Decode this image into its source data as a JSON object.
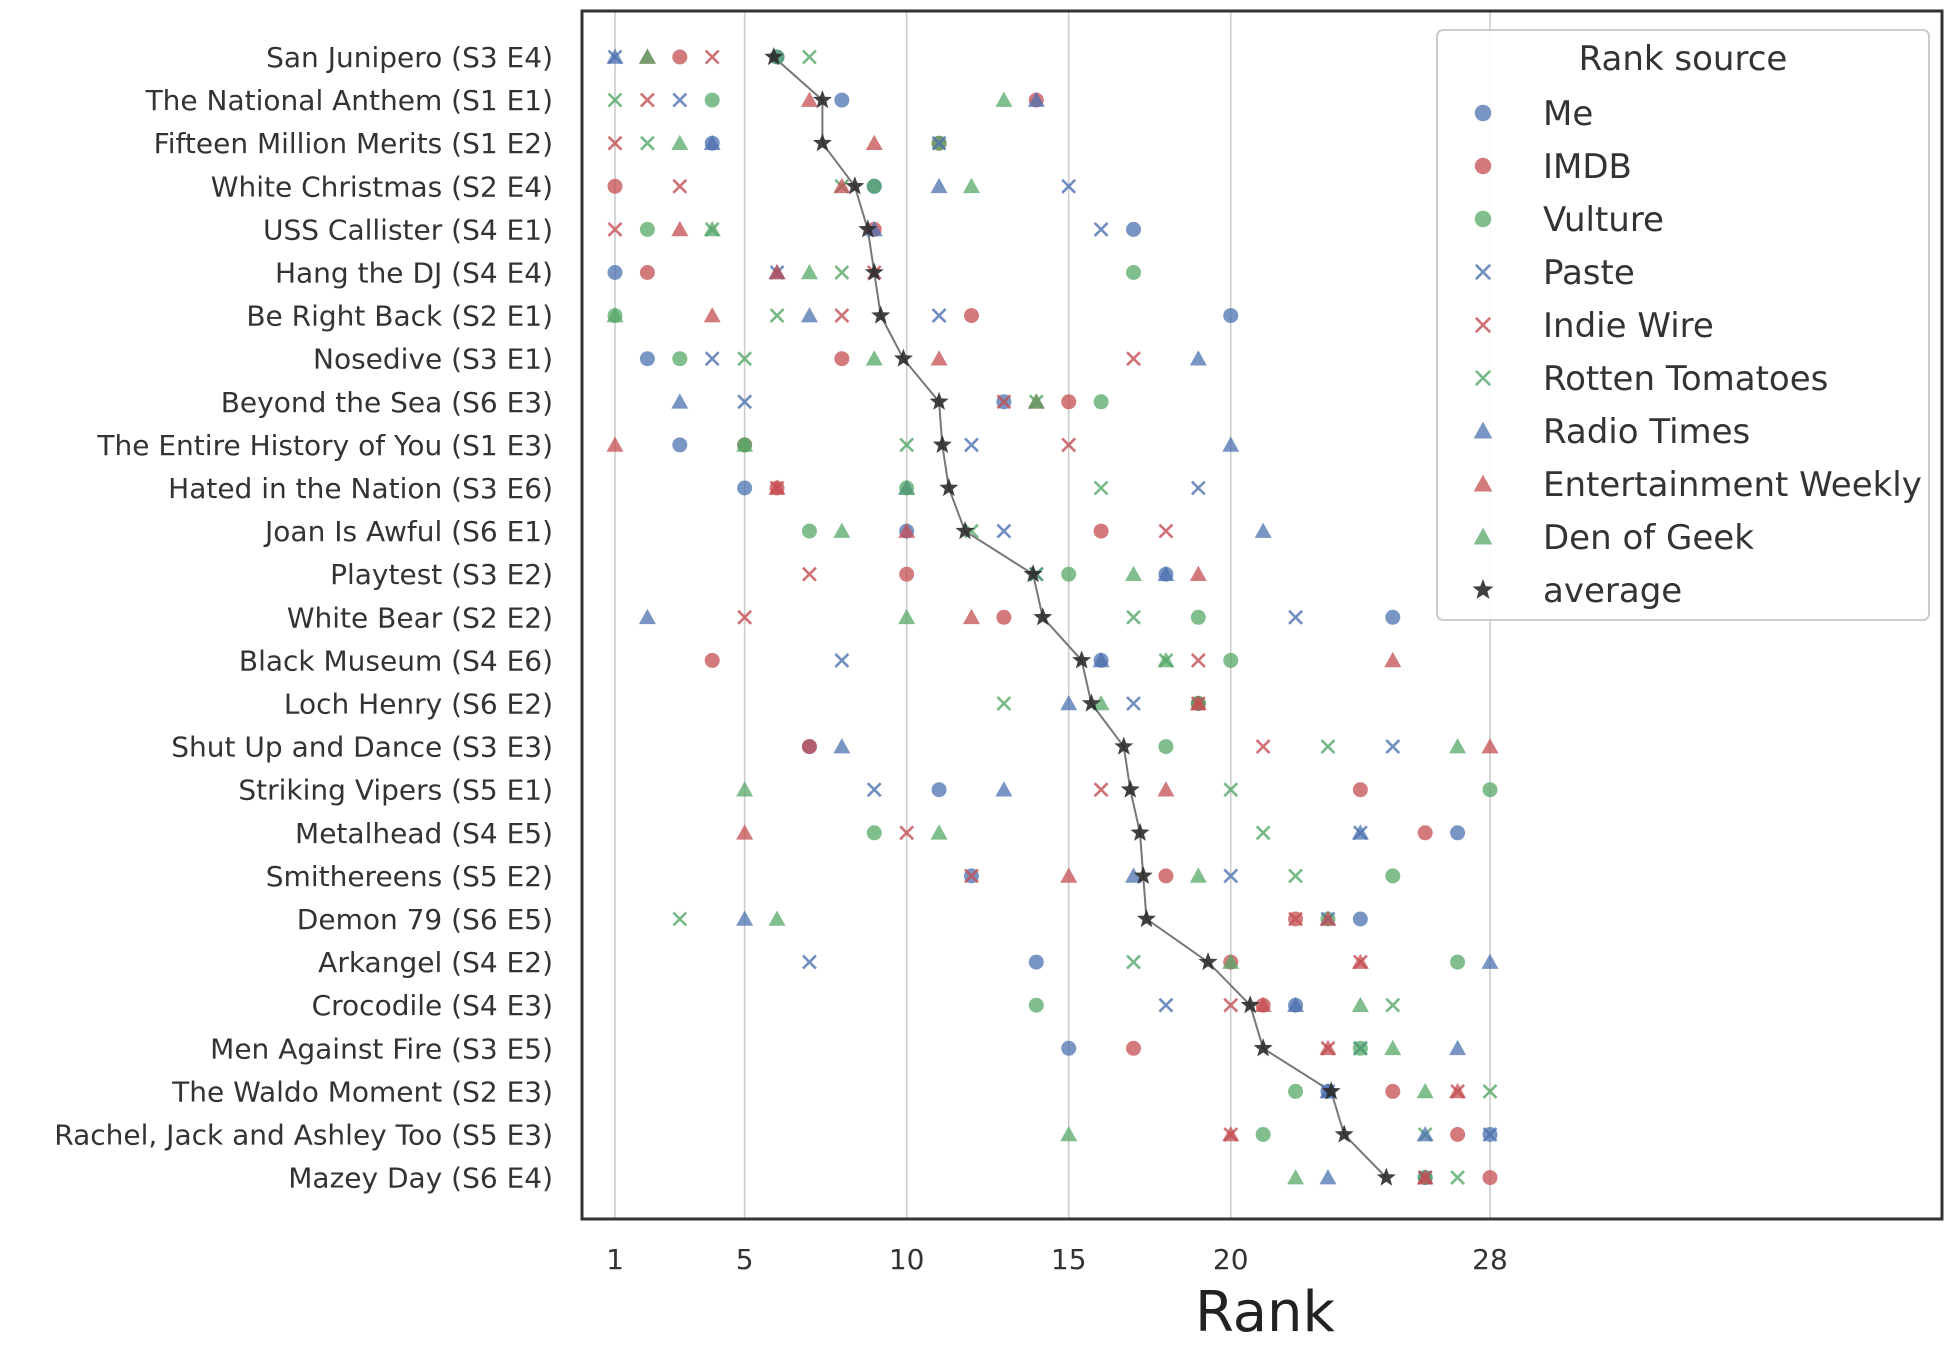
{
  "chart_data": {
    "type": "scatter",
    "title": "",
    "xlabel": "Rank",
    "ylabel": "",
    "xlim": [
      0,
      41
    ],
    "xticks": [
      1,
      5,
      10,
      15,
      20,
      28
    ],
    "grid": "vertical",
    "legend": {
      "title": "Rank source",
      "placement": "top-right"
    },
    "categories": [
      "San Junipero (S3 E4)",
      "The National Anthem (S1 E1)",
      "Fifteen Million Merits (S1 E2)",
      "White Christmas (S2 E4)",
      "USS Callister (S4 E1)",
      "Hang the DJ (S4 E4)",
      "Be Right Back (S2 E1)",
      "Nosedive (S3 E1)",
      "Beyond the Sea (S6 E3)",
      "The Entire History of You (S1 E3)",
      "Hated in the Nation (S3 E6)",
      "Joan Is Awful (S6 E1)",
      "Playtest (S3 E2)",
      "White Bear (S2 E2)",
      "Black Museum (S4 E6)",
      "Loch Henry (S6 E2)",
      "Shut Up and Dance (S3 E3)",
      "Striking Vipers (S5 E1)",
      "Metalhead (S4 E5)",
      "Smithereens (S5 E2)",
      "Demon 79 (S6 E5)",
      "Arkangel (S4 E2)",
      "Crocodile (S4 E3)",
      "Men Against Fire (S3 E5)",
      "The Waldo Moment (S2 E3)",
      "Rachel, Jack and Ashley Too (S5 E3)",
      "Mazey Day (S6 E4)"
    ],
    "series": [
      {
        "name": "Me",
        "marker": "circle",
        "color": "#4c72b0",
        "values": [
          6,
          8,
          4,
          9,
          17,
          1,
          20,
          2,
          13,
          3,
          5,
          10,
          18,
          25,
          16,
          19,
          7,
          11,
          27,
          12,
          24,
          14,
          22,
          15,
          23,
          28,
          26
        ]
      },
      {
        "name": "IMDB",
        "marker": "circle",
        "color": "#c44e52",
        "values": [
          3,
          14,
          11,
          1,
          9,
          2,
          12,
          8,
          15,
          5,
          6,
          16,
          10,
          13,
          4,
          19,
          7,
          24,
          26,
          18,
          22,
          20,
          21,
          17,
          25,
          27,
          28
        ]
      },
      {
        "name": "Vulture",
        "marker": "circle",
        "color": "#55a868",
        "values": [
          6,
          4,
          11,
          9,
          2,
          17,
          1,
          3,
          16,
          5,
          10,
          7,
          15,
          19,
          20,
          19,
          18,
          28,
          9,
          25,
          23,
          27,
          14,
          24,
          22,
          21,
          26
        ]
      },
      {
        "name": "Paste",
        "marker": "x",
        "color": "#4c72b0",
        "values": [
          1,
          3,
          11,
          15,
          16,
          6,
          11,
          4,
          5,
          12,
          19,
          13,
          14,
          22,
          8,
          17,
          25,
          9,
          24,
          20,
          23,
          7,
          18,
          24,
          23,
          28,
          26
        ]
      },
      {
        "name": "Indie Wire",
        "marker": "x",
        "color": "#c44e52",
        "values": [
          4,
          2,
          1,
          3,
          1,
          9,
          8,
          17,
          13,
          15,
          6,
          18,
          7,
          5,
          19,
          19,
          21,
          16,
          10,
          12,
          22,
          24,
          20,
          23,
          27,
          20,
          26
        ]
      },
      {
        "name": "Rotten Tomatoes",
        "marker": "x",
        "color": "#55a868",
        "values": [
          7,
          1,
          2,
          8,
          4,
          8,
          6,
          5,
          14,
          10,
          16,
          12,
          14,
          17,
          18,
          13,
          23,
          20,
          21,
          22,
          3,
          17,
          25,
          24,
          28,
          26,
          27
        ]
      },
      {
        "name": "Radio Times",
        "marker": "triangle",
        "color": "#4c72b0",
        "values": [
          1,
          14,
          4,
          11,
          9,
          6,
          7,
          19,
          3,
          20,
          10,
          21,
          18,
          2,
          16,
          15,
          8,
          13,
          24,
          17,
          5,
          28,
          22,
          27,
          23,
          26,
          23
        ]
      },
      {
        "name": "Entertainment Weekly",
        "marker": "triangle",
        "color": "#c44e52",
        "values": [
          2,
          7,
          9,
          8,
          3,
          6,
          4,
          11,
          14,
          1,
          6,
          10,
          19,
          12,
          25,
          19,
          28,
          18,
          5,
          15,
          23,
          24,
          21,
          23,
          27,
          20,
          26
        ]
      },
      {
        "name": "Den of Geek",
        "marker": "triangle",
        "color": "#55a868",
        "values": [
          2,
          13,
          3,
          12,
          4,
          7,
          1,
          9,
          14,
          5,
          10,
          8,
          17,
          10,
          18,
          16,
          27,
          5,
          11,
          19,
          6,
          20,
          24,
          25,
          26,
          15,
          22
        ]
      },
      {
        "name": "average",
        "marker": "star",
        "color": "#2b2b2b",
        "values": [
          5.9,
          7.4,
          7.4,
          8.4,
          8.8,
          9.0,
          9.2,
          9.9,
          11.0,
          11.1,
          11.3,
          11.8,
          13.9,
          14.2,
          15.4,
          15.7,
          16.7,
          16.9,
          17.2,
          17.3,
          17.4,
          19.3,
          20.6,
          21.0,
          23.1,
          23.5,
          24.8
        ]
      }
    ]
  }
}
